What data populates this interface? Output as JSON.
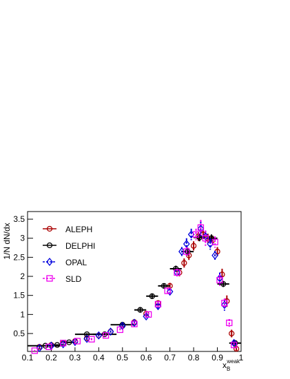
{
  "chart_data": {
    "type": "errorbar",
    "ylabel": "1/N dN/dx",
    "xlabel": {
      "base": "x",
      "sub": "B",
      "sup": "weak"
    },
    "xlim": [
      0.1,
      1
    ],
    "ylim": [
      0.03,
      3.7
    ],
    "xticks": [
      0.1,
      0.2,
      0.3,
      0.4,
      0.5,
      0.6,
      0.7,
      0.8,
      0.9,
      1
    ],
    "yticks": [
      0.5,
      1,
      1.5,
      2,
      2.5,
      3,
      3.5
    ],
    "legend": "upper left",
    "series": [
      {
        "name": "ALEPH",
        "color": "#aa0000",
        "marker": "circle",
        "dashed": false,
        "x": [
          0.15,
          0.2,
          0.25,
          0.3,
          0.35,
          0.4,
          0.45,
          0.5,
          0.55,
          0.6,
          0.65,
          0.7,
          0.74,
          0.76,
          0.78,
          0.8,
          0.82,
          0.84,
          0.86,
          0.88,
          0.9,
          0.92,
          0.94,
          0.96,
          0.98
        ],
        "values": [
          0.15,
          0.2,
          0.25,
          0.3,
          0.38,
          0.45,
          0.55,
          0.7,
          0.8,
          1.02,
          1.3,
          1.75,
          2.1,
          2.35,
          2.55,
          2.8,
          3.05,
          3.1,
          3.0,
          2.95,
          2.65,
          2.05,
          1.35,
          0.5,
          0.1
        ],
        "yerr": [
          0.02,
          0.02,
          0.02,
          0.02,
          0.03,
          0.03,
          0.03,
          0.04,
          0.04,
          0.05,
          0.06,
          0.08,
          0.1,
          0.12,
          0.12,
          0.12,
          0.12,
          0.12,
          0.12,
          0.12,
          0.12,
          0.15,
          0.15,
          0.1,
          0.05
        ]
      },
      {
        "name": "DELPHI",
        "color": "#000000",
        "marker": "circle",
        "dashed": false,
        "x": [
          0.175,
          0.225,
          0.275,
          0.35,
          0.425,
          0.5,
          0.575,
          0.625,
          0.675,
          0.725,
          0.775,
          0.825,
          0.875,
          0.925,
          0.975
        ],
        "values": [
          0.18,
          0.2,
          0.27,
          0.48,
          0.48,
          0.73,
          1.12,
          1.48,
          1.75,
          2.2,
          2.65,
          3.02,
          3.0,
          1.8,
          0.25
        ],
        "xerr": [
          0.075,
          0.025,
          0.025,
          0.05,
          0.05,
          0.05,
          0.025,
          0.025,
          0.025,
          0.025,
          0.025,
          0.025,
          0.025,
          0.025,
          0.025
        ],
        "yerr": [
          0.02,
          0.02,
          0.02,
          0.03,
          0.03,
          0.04,
          0.05,
          0.06,
          0.07,
          0.08,
          0.1,
          0.1,
          0.1,
          0.08,
          0.05
        ]
      },
      {
        "name": "OPAL",
        "color": "#0000dd",
        "marker": "diamond",
        "dashed": true,
        "x": [
          0.15,
          0.2,
          0.25,
          0.3,
          0.35,
          0.4,
          0.45,
          0.5,
          0.55,
          0.6,
          0.65,
          0.7,
          0.73,
          0.75,
          0.77,
          0.79,
          0.83,
          0.85,
          0.87,
          0.89,
          0.91,
          0.93,
          0.97
        ],
        "values": [
          0.12,
          0.18,
          0.22,
          0.28,
          0.36,
          0.45,
          0.55,
          0.7,
          0.78,
          0.95,
          1.22,
          1.6,
          2.1,
          2.65,
          2.85,
          3.1,
          3.25,
          3.05,
          2.85,
          2.55,
          1.95,
          1.25,
          0.25
        ],
        "yerr": [
          0.02,
          0.02,
          0.02,
          0.02,
          0.03,
          0.03,
          0.03,
          0.04,
          0.04,
          0.05,
          0.06,
          0.08,
          0.1,
          0.12,
          0.15,
          0.15,
          0.2,
          0.15,
          0.15,
          0.12,
          0.15,
          0.15,
          0.05
        ]
      },
      {
        "name": "SLD",
        "color": "#ee00ee",
        "marker": "square",
        "dashed": true,
        "x": [
          0.13,
          0.19,
          0.25,
          0.31,
          0.37,
          0.43,
          0.49,
          0.55,
          0.61,
          0.65,
          0.69,
          0.73,
          0.77,
          0.81,
          0.83,
          0.85,
          0.89,
          0.91,
          0.93,
          0.95,
          0.97
        ],
        "values": [
          0.05,
          0.15,
          0.25,
          0.3,
          0.35,
          0.45,
          0.6,
          0.75,
          1.0,
          1.27,
          1.62,
          2.1,
          2.65,
          3.1,
          3.28,
          3.0,
          2.9,
          1.9,
          1.3,
          0.78,
          0.2
        ],
        "yerr": [
          0.02,
          0.02,
          0.02,
          0.02,
          0.03,
          0.03,
          0.04,
          0.04,
          0.05,
          0.06,
          0.08,
          0.1,
          0.12,
          0.15,
          0.2,
          0.2,
          0.15,
          0.15,
          0.12,
          0.1,
          0.05
        ]
      }
    ]
  }
}
